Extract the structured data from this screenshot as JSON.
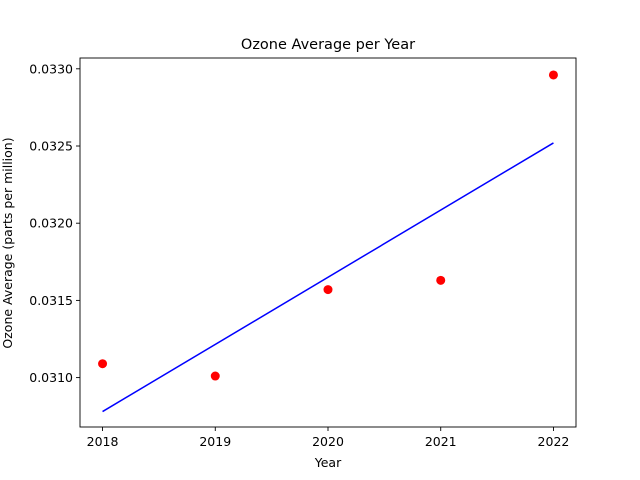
{
  "chart_data": {
    "type": "scatter",
    "title": "Ozone Average per Year",
    "xlabel": "Year",
    "ylabel": "Ozone Average (parts per million)",
    "xlim": [
      2017.8,
      2022.2
    ],
    "ylim": [
      0.03068,
      0.03307
    ],
    "x_ticks": [
      2018,
      2019,
      2020,
      2021,
      2022
    ],
    "x_tick_labels": [
      "2018",
      "2019",
      "2020",
      "2021",
      "2022"
    ],
    "y_ticks": [
      0.031,
      0.0315,
      0.032,
      0.0325,
      0.033
    ],
    "y_tick_labels": [
      "0.0310",
      "0.0315",
      "0.0320",
      "0.0325",
      "0.0330"
    ],
    "grid": false,
    "series": [
      {
        "type": "scatter",
        "color": "#ff0000",
        "x": [
          2018,
          2019,
          2020,
          2021,
          2022
        ],
        "y": [
          0.03109,
          0.03101,
          0.03157,
          0.03163,
          0.03296
        ]
      },
      {
        "type": "line",
        "color": "#0000ff",
        "x": [
          2018,
          2022
        ],
        "y": [
          0.03078,
          0.03252
        ]
      }
    ]
  }
}
